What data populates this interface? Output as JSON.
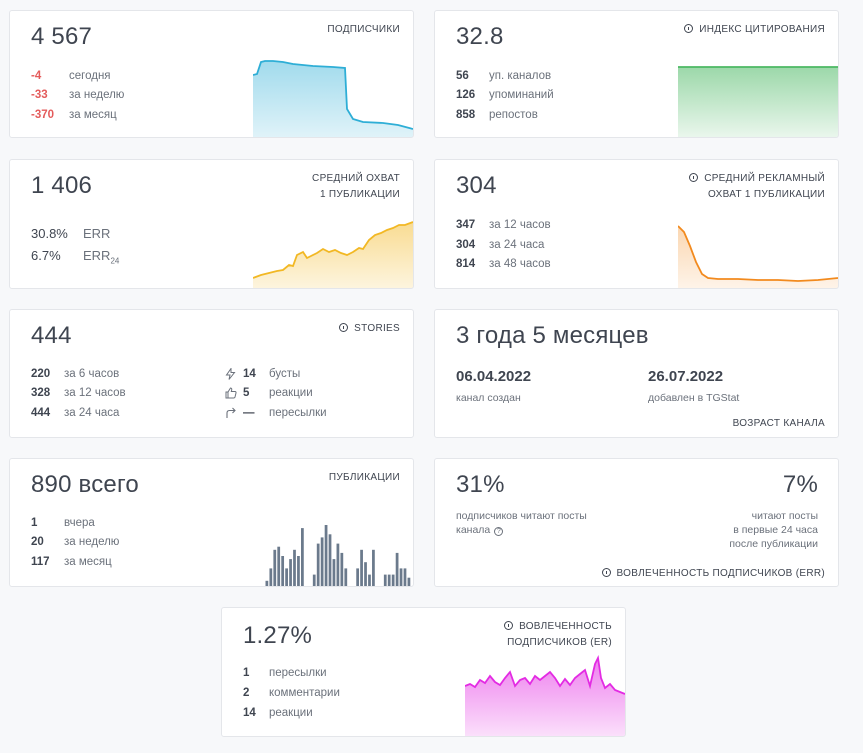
{
  "subscribers": {
    "value": "4 567",
    "title": "ПОДПИСЧИКИ",
    "rows": [
      {
        "value": "-4",
        "label": "сегодня"
      },
      {
        "value": "-33",
        "label": "за неделю"
      },
      {
        "value": "-370",
        "label": "за месяц"
      }
    ],
    "color": "#2eaed6"
  },
  "citation": {
    "value": "32.8",
    "title": "ИНДЕКС ЦИТИРОВАНИЯ",
    "rows": [
      {
        "value": "56",
        "label": "уп. каналов"
      },
      {
        "value": "126",
        "label": "упоминаний"
      },
      {
        "value": "858",
        "label": "репостов"
      }
    ],
    "color": "#4bb863"
  },
  "reach": {
    "value": "1 406",
    "title_line1": "СРЕДНИЙ ОХВАТ",
    "title_line2": "1 ПУБЛИКАЦИИ",
    "err_value": "30.8%",
    "err_label": "ERR",
    "err24_value": "6.7%",
    "err24_label": "ERR",
    "err24_sub": "24",
    "color": "#f2b824"
  },
  "ad_reach": {
    "value": "304",
    "title_line1": "СРЕДНИЙ РЕКЛАМНЫЙ",
    "title_line2": "ОХВАТ 1 ПУБЛИКАЦИИ",
    "rows": [
      {
        "value": "347",
        "label": "за 12 часов"
      },
      {
        "value": "304",
        "label": "за 24 часа"
      },
      {
        "value": "814",
        "label": "за 48 часов"
      }
    ],
    "color": "#f28a1e"
  },
  "stories": {
    "value": "444",
    "title": "STORIES",
    "rows": [
      {
        "value": "220",
        "label": "за 6 часов"
      },
      {
        "value": "328",
        "label": "за 12 часов"
      },
      {
        "value": "444",
        "label": "за 24 часа"
      }
    ],
    "extra": [
      {
        "icon": "lightning-icon",
        "value": "14",
        "label": "бусты"
      },
      {
        "icon": "thumbs-up-icon",
        "value": "5",
        "label": "реакции"
      },
      {
        "icon": "share-arrow-icon",
        "value": "—",
        "label": "пересылки"
      }
    ]
  },
  "age": {
    "value": "3 года 5 месяцев",
    "created_date": "06.04.2022",
    "created_label": "канал создан",
    "added_date": "26.07.2022",
    "added_label": "добавлен в TGStat",
    "footer": "ВОЗРАСТ КАНАЛА"
  },
  "publications": {
    "value": "890 всего",
    "title": "ПУБЛИКАЦИИ",
    "rows": [
      {
        "value": "1",
        "label": "вчера"
      },
      {
        "value": "20",
        "label": "за неделю"
      },
      {
        "value": "117",
        "label": "за месяц"
      }
    ],
    "color": "#6b7a8c",
    "chart_bars": [
      2,
      6,
      12,
      13,
      10,
      6,
      9,
      12,
      10,
      19,
      0,
      0,
      4,
      14,
      16,
      20,
      17,
      9,
      14,
      11,
      6,
      0,
      0,
      6,
      12,
      8,
      4,
      12,
      0,
      0,
      4,
      4,
      4,
      11,
      6,
      6,
      3
    ]
  },
  "engagement_err": {
    "left_value": "31%",
    "left_text_line1": "подписчиков читают посты",
    "left_text_line2": "канала",
    "right_value": "7%",
    "right_text_line1": "читают посты",
    "right_text_line2": "в первые 24 часа",
    "right_text_line3": "после публикации",
    "footer": "ВОВЛЕЧЕННОСТЬ ПОДПИСЧИКОВ (ERR)"
  },
  "engagement_er": {
    "value": "1.27%",
    "title_line1": "ВОВЛЕЧЕННОСТЬ",
    "title_line2": "ПОДПИСЧИКОВ (ER)",
    "rows": [
      {
        "value": "1",
        "label": "пересылки"
      },
      {
        "value": "2",
        "label": "комментарии"
      },
      {
        "value": "14",
        "label": "реакции"
      }
    ],
    "color": "#e32be3"
  }
}
